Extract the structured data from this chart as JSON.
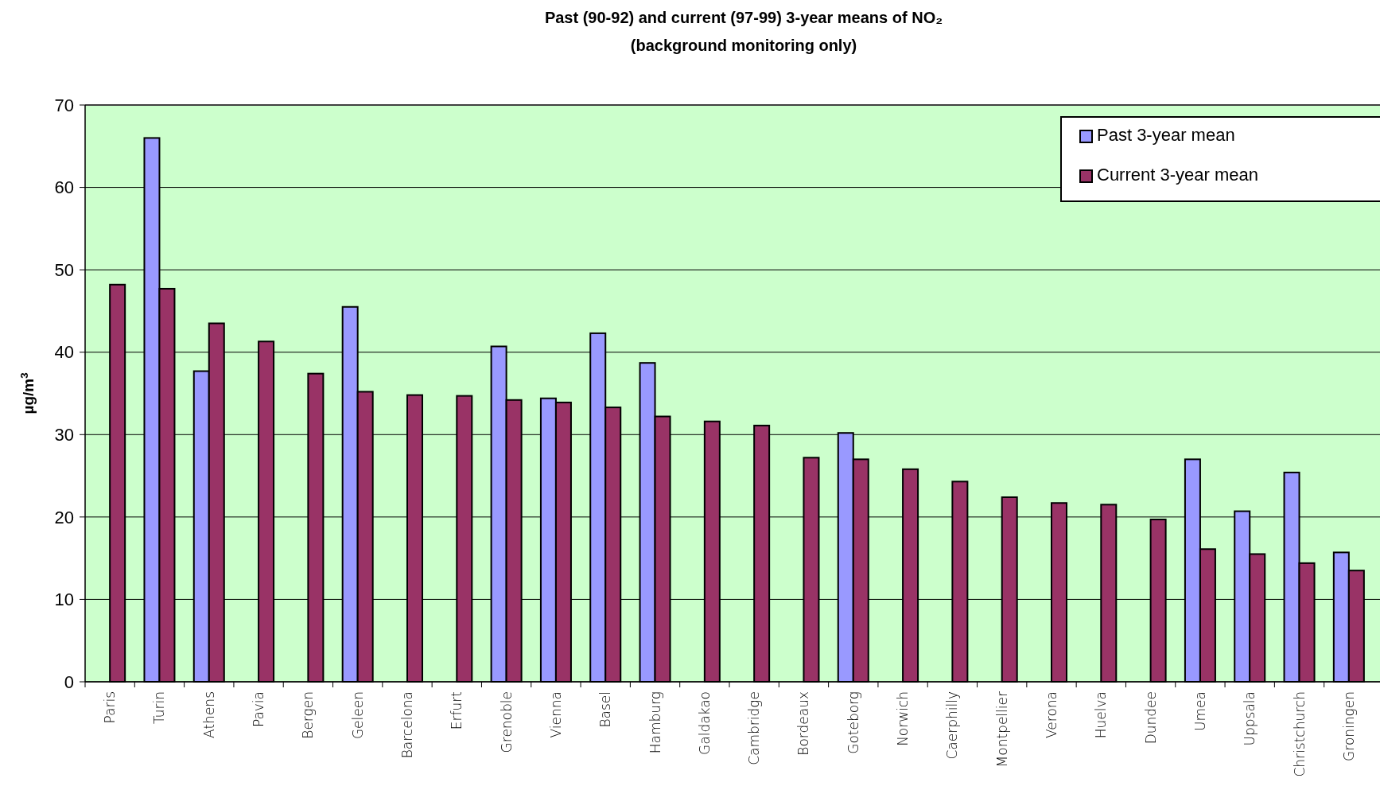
{
  "chart_data": {
    "type": "bar",
    "title": "Past (90-92) and current (97-99)  3-year means of NO₂",
    "subtitle": "(background monitoring only)",
    "ylabel": "µg/m$^{3}$",
    "categories": [
      "Paris",
      "Turin",
      "Athens",
      "Pavia",
      "Bergen",
      "Geleen",
      "Barcelona",
      "Erfurt",
      "Grenoble",
      "Vienna",
      "Basel",
      "Hamburg",
      "Galdakao",
      "Cambridge",
      "Bordeaux",
      "Goteborg",
      "Norwich",
      "Caerphilly",
      "Montpellier",
      "Verona",
      "Huelva",
      "Dundee",
      "Umea",
      "Uppsala",
      "Christchurch",
      "Groningen"
    ],
    "series": [
      {
        "name": "Past 3-year mean",
        "color": "#9999ff",
        "values": [
          null,
          66,
          37.7,
          null,
          null,
          45.5,
          null,
          null,
          40.7,
          34.4,
          42.3,
          38.7,
          null,
          null,
          null,
          30.2,
          null,
          null,
          null,
          null,
          null,
          null,
          27.0,
          20.7,
          25.4,
          15.7
        ]
      },
      {
        "name": "Current 3-year mean",
        "color": "#993366",
        "values": [
          48.2,
          47.7,
          43.5,
          41.3,
          37.4,
          35.2,
          34.8,
          34.7,
          34.2,
          33.9,
          33.3,
          32.2,
          31.6,
          31.1,
          27.2,
          27.0,
          25.8,
          24.3,
          22.4,
          21.7,
          21.5,
          19.7,
          16.1,
          15.5,
          14.4,
          13.5
        ]
      }
    ],
    "ylim": [
      0,
      70
    ],
    "yticks": [
      0,
      10,
      20,
      30,
      40,
      50,
      60,
      70
    ],
    "grid": "y",
    "legend": "top right"
  }
}
